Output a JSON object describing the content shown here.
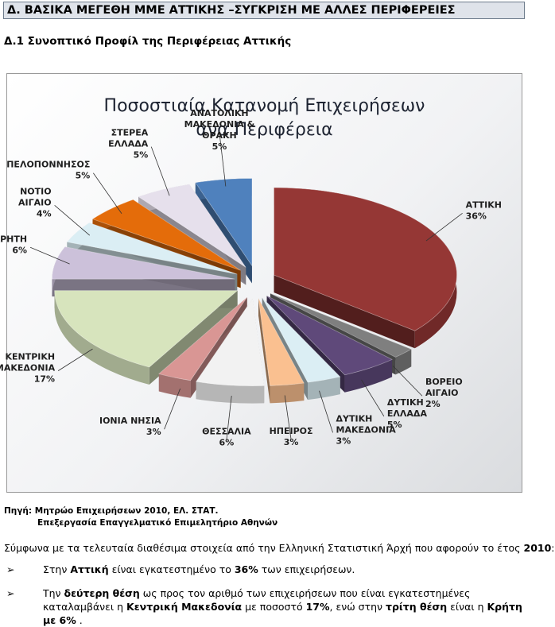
{
  "header": {
    "section_title": "Δ. ΒΑΣΙΚΑ ΜΕΓΕΘΗ ΜΜΕ ΑΤΤΙΚΗΣ –ΣΥΓΚΡΙΣΗ ΜΕ ΑΛΛΕΣ ΠΕΡΙΦΕΡΕΙΕΣ",
    "subsection_title": "Δ.1 Συνοπτικό Προφίλ της Περιφέρειας Αττικής"
  },
  "chart_data": {
    "type": "pie",
    "title_line1": "Ποσοστιαία Κατανομή Επιχειρήσεων",
    "title_line2": "ανα Περιφέρεια",
    "slices": [
      {
        "label": "ΑΤΤΙΚΗ",
        "value": 36,
        "value_label": "36%",
        "color": "#953735"
      },
      {
        "label": "ΒΟΡΕΙΟ ΑΙΓΑΙΟ",
        "value": 2,
        "value_label": "2%",
        "color": "#7f7f7f"
      },
      {
        "label": "ΔΥΤΙΚΗ ΕΛΛΑΔΑ",
        "value": 5,
        "value_label": "5%",
        "color": "#5f497a"
      },
      {
        "label": "ΔΥΤΙΚΗ ΜΑΚΕΔΟΝΙΑ",
        "value": 3,
        "value_label": "3%",
        "color": "#dbeef4"
      },
      {
        "label": "ΗΠΕΙΡΟΣ",
        "value": 3,
        "value_label": "3%",
        "color": "#fac090"
      },
      {
        "label": "ΘΕΣΣΑΛΙΑ",
        "value": 6,
        "value_label": "6%",
        "color": "#f2f2f2"
      },
      {
        "label": "ΙΟΝΙΑ ΝΗΣΙΑ",
        "value": 3,
        "value_label": "3%",
        "color": "#d99694"
      },
      {
        "label": "ΚΕΝΤΡΙΚΗ ΜΑΚΕΔΟΝΙΑ",
        "value": 17,
        "value_label": "17%",
        "color": "#d7e4bd"
      },
      {
        "label": "ΚΡΗΤΗ",
        "value": 6,
        "value_label": "6%",
        "color": "#ccc1da"
      },
      {
        "label": "ΝΟΤΙΟ ΑΙΓΑΙΟ",
        "value": 4,
        "value_label": "4%",
        "color": "#dbeef4"
      },
      {
        "label": "ΠΕΛΟΠΟΝΝΗΣΟΣ",
        "value": 5,
        "value_label": "5%",
        "color": "#e46c0a"
      },
      {
        "label": "ΣΤΕΡΕΑ ΕΛΛΑΔΑ",
        "value": 5,
        "value_label": "5%",
        "color": "#e6e0ec"
      },
      {
        "label": "ΑΝΑΤΟΛΙΚΗ ΜΑΚΕΔΟΝΙΑ & ΘΡΑΚΗ",
        "value": 5,
        "value_label": "5%",
        "color": "#4f81bd"
      }
    ]
  },
  "source": {
    "line1": "Πηγή: Μητρώο Επιχειρήσεων 2010, ΕΛ. ΣΤΑΤ.",
    "line2": "Επεξεργασία Επαγγελματικό Επιμελητήριο Αθηνών"
  },
  "body": {
    "intro_text": "Σύμφωνα με τα τελευταία διαθέσιμα στοιχεία από την Ελληνική Στατιστική Άρχή που αφορούν το έτος ",
    "intro_year": "2010",
    "intro_end": ":",
    "bullet_mark": "➢",
    "b1_pre": "Στην ",
    "b1_bold1": "Αττική",
    "b1_mid": " είναι εγκατεστημένο το ",
    "b1_bold2": "36%",
    "b1_end": " των επιχειρήσεων.",
    "b2_pre": "Την ",
    "b2_bold1": "δεύτερη θέση",
    "b2_mid1": " ως προς τον αριθμό των επιχειρήσεων που είναι εγκατεστημένες καταλαμβάνει η ",
    "b2_bold2": "Κεντρική Μακεδονία",
    "b2_mid2": " με ποσοστό ",
    "b2_bold3": "17%",
    "b2_mid3": ", ενώ στην ",
    "b2_bold4": "τρίτη θέση",
    "b2_mid4": " είναι η ",
    "b2_bold5": "Κρήτη με 6%",
    "b2_end": " ."
  }
}
